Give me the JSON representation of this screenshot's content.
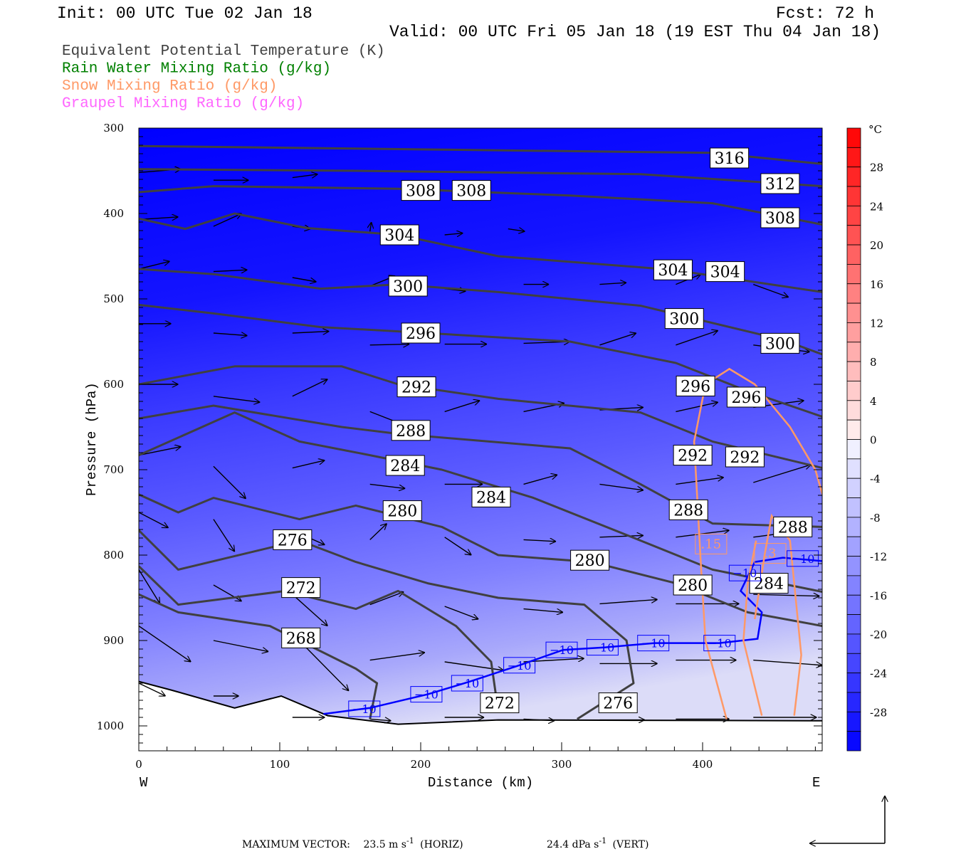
{
  "header": {
    "init": "Init: 00 UTC Tue 02 Jan 18",
    "fcst": "Fcst:   72 h",
    "valid": "Valid: 00 UTC Fri 05 Jan 18 (19 EST Thu 04 Jan 18)"
  },
  "legend": [
    {
      "label": "Equivalent Potential Temperature (K)",
      "color": "#404040"
    },
    {
      "label": "Rain Water Mixing Ratio (g/kg)",
      "color": "#008000"
    },
    {
      "label": "Snow Mixing Ratio (g/kg)",
      "color": "#ff9966"
    },
    {
      "label": "Graupel Mixing Ratio (g/kg)",
      "color": "#ff66ff"
    }
  ],
  "footer": {
    "max_vector_label": "MAXIMUM VECTOR:",
    "horiz_value": "23.5 m s",
    "horiz_unit_exp": "-1",
    "horiz_tag": "(HORIZ)",
    "vert_value": "24.4 dPa s",
    "vert_unit_exp": "-1",
    "vert_tag": "(VERT)"
  },
  "chart_data": {
    "type": "cross-section",
    "xlabel": "Distance (km)",
    "ylabel": "Pressure (hPa)",
    "xlim": [
      0,
      485
    ],
    "ylim": [
      1029,
      300
    ],
    "x_ticks": [
      "0",
      "100",
      "200",
      "300",
      "400"
    ],
    "x_tick_values": [
      0,
      100,
      200,
      300,
      400
    ],
    "y_ticks": [
      "300",
      "400",
      "500",
      "600",
      "700",
      "800",
      "900",
      "1000"
    ],
    "y_tick_values": [
      300,
      400,
      500,
      600,
      700,
      800,
      900,
      1000
    ],
    "left_end_label": "W",
    "right_end_label": "E",
    "colorbar": {
      "unit": "°C",
      "min": -32,
      "max": 32,
      "step": 2,
      "tick_labels": [
        "28",
        "24",
        "20",
        "16",
        "12",
        "8",
        "4",
        "0",
        "-4",
        "-8",
        "-12",
        "-16",
        "-20",
        "-24",
        "-28"
      ],
      "tick_values": [
        28,
        24,
        20,
        16,
        12,
        8,
        4,
        0,
        -4,
        -8,
        -12,
        -16,
        -20,
        -24,
        -28
      ],
      "warm_color": "#ff0000",
      "cold_color": "#0000ff"
    },
    "theta_e_contours": [
      {
        "value": 316,
        "points": [
          [
            0,
            321
          ],
          [
            205,
            325
          ],
          [
            407,
            329
          ],
          [
            485,
            342
          ]
        ],
        "labels": [
          [
            419,
            335
          ]
        ]
      },
      {
        "value": 312,
        "points": [
          [
            0,
            348
          ],
          [
            154,
            350
          ],
          [
            356,
            354
          ],
          [
            485,
            368
          ]
        ],
        "labels": [
          [
            455,
            365
          ]
        ]
      },
      {
        "value": 308,
        "points": [
          [
            0,
            375
          ],
          [
            53,
            368
          ],
          [
            184,
            371
          ],
          [
            306,
            379
          ],
          [
            407,
            388
          ],
          [
            485,
            413
          ]
        ],
        "labels": [
          [
            200,
            373
          ],
          [
            236,
            373
          ],
          [
            455,
            405
          ]
        ]
      },
      {
        "value": 304,
        "points": [
          [
            0,
            406
          ],
          [
            33,
            418
          ],
          [
            68,
            400
          ],
          [
            119,
            417
          ],
          [
            184,
            425
          ],
          [
            255,
            450
          ],
          [
            379,
            466
          ],
          [
            485,
            492
          ]
        ],
        "labels": [
          [
            185,
            425
          ],
          [
            379,
            466
          ],
          [
            416,
            468
          ]
        ]
      },
      {
        "value": 300,
        "points": [
          [
            0,
            465
          ],
          [
            53,
            471
          ],
          [
            129,
            488
          ],
          [
            184,
            483
          ],
          [
            255,
            492
          ],
          [
            356,
            508
          ],
          [
            457,
            548
          ],
          [
            485,
            565
          ]
        ],
        "labels": [
          [
            191,
            485
          ],
          [
            387,
            523
          ],
          [
            455,
            552
          ]
        ]
      },
      {
        "value": 296,
        "points": [
          [
            0,
            507
          ],
          [
            53,
            517
          ],
          [
            129,
            533
          ],
          [
            184,
            538
          ],
          [
            306,
            550
          ],
          [
            381,
            575
          ],
          [
            432,
            608
          ],
          [
            485,
            638
          ]
        ],
        "labels": [
          [
            200,
            540
          ],
          [
            395,
            602
          ],
          [
            431,
            615
          ]
        ]
      },
      {
        "value": 292,
        "points": [
          [
            0,
            600
          ],
          [
            68,
            579
          ],
          [
            144,
            579
          ],
          [
            184,
            600
          ],
          [
            255,
            617
          ],
          [
            356,
            633
          ],
          [
            407,
            667
          ],
          [
            485,
            698
          ]
        ],
        "labels": [
          [
            197,
            603
          ],
          [
            393,
            683
          ],
          [
            430,
            685
          ]
        ]
      },
      {
        "value": 288,
        "points": [
          [
            0,
            640
          ],
          [
            53,
            625
          ],
          [
            144,
            650
          ],
          [
            184,
            658
          ],
          [
            306,
            675
          ],
          [
            356,
            717
          ],
          [
            407,
            763
          ],
          [
            485,
            767
          ]
        ],
        "labels": [
          [
            193,
            654
          ],
          [
            390,
            747
          ],
          [
            464,
            767
          ]
        ]
      },
      {
        "value": 284,
        "points": [
          [
            0,
            683
          ],
          [
            68,
            633
          ],
          [
            114,
            667
          ],
          [
            164,
            683
          ],
          [
            215,
            700
          ],
          [
            280,
            733
          ],
          [
            356,
            783
          ],
          [
            407,
            817
          ],
          [
            485,
            843
          ]
        ],
        "labels": [
          [
            189,
            695
          ],
          [
            250,
            732
          ],
          [
            447,
            833
          ]
        ]
      },
      {
        "value": 280,
        "points": [
          [
            0,
            729
          ],
          [
            28,
            750
          ],
          [
            53,
            733
          ],
          [
            114,
            758
          ],
          [
            154,
            742
          ],
          [
            215,
            767
          ],
          [
            255,
            800
          ],
          [
            321,
            808
          ],
          [
            381,
            833
          ],
          [
            432,
            867
          ],
          [
            485,
            883
          ]
        ],
        "labels": [
          [
            187,
            748
          ],
          [
            320,
            806
          ],
          [
            393,
            835
          ]
        ]
      },
      {
        "value": 276,
        "points": [
          [
            0,
            771
          ],
          [
            28,
            817
          ],
          [
            114,
            783
          ],
          [
            154,
            808
          ],
          [
            205,
            833
          ],
          [
            255,
            850
          ],
          [
            316,
            858
          ],
          [
            346,
            900
          ],
          [
            351,
            950
          ],
          [
            311,
            992
          ]
        ],
        "labels": [
          [
            109,
            782
          ],
          [
            340,
            973
          ]
        ]
      },
      {
        "value": 272,
        "points": [
          [
            0,
            813
          ],
          [
            28,
            858
          ],
          [
            104,
            842
          ],
          [
            154,
            863
          ],
          [
            184,
            842
          ],
          [
            225,
            883
          ],
          [
            250,
            925
          ],
          [
            255,
            983
          ]
        ],
        "labels": [
          [
            115,
            838
          ],
          [
            256,
            973
          ]
        ]
      },
      {
        "value": 268,
        "points": [
          [
            0,
            846
          ],
          [
            28,
            867
          ],
          [
            93,
            883
          ],
          [
            154,
            933
          ],
          [
            169,
            950
          ],
          [
            164,
            992
          ]
        ],
        "labels": [
          [
            115,
            897
          ]
        ]
      }
    ],
    "isotherm_minus10": {
      "value": "−10",
      "points": [
        [
          131,
          986
        ],
        [
          164,
          979
        ],
        [
          205,
          963
        ],
        [
          235,
          948
        ],
        [
          270,
          929
        ],
        [
          301,
          911
        ],
        [
          331,
          908
        ],
        [
          366,
          903
        ],
        [
          412,
          903
        ],
        [
          439,
          898
        ],
        [
          442,
          867
        ],
        [
          427,
          842
        ],
        [
          437,
          808
        ],
        [
          457,
          803
        ],
        [
          485,
          807
        ]
      ],
      "labels": [
        [
          160,
          980
        ],
        [
          204,
          963
        ],
        [
          233,
          950
        ],
        [
          270,
          929
        ],
        [
          300,
          911
        ],
        [
          329,
          908
        ],
        [
          365,
          903
        ],
        [
          412,
          903
        ],
        [
          430,
          821
        ],
        [
          471,
          804
        ]
      ]
    },
    "snow_contours": [
      {
        "value": ".15",
        "points": [
          [
            417,
            992
          ],
          [
            402,
            900
          ],
          [
            399,
            817
          ],
          [
            394,
            667
          ],
          [
            402,
            600
          ],
          [
            419,
            582
          ],
          [
            437,
            600
          ],
          [
            462,
            650
          ],
          [
            480,
            700
          ],
          [
            485,
            729
          ]
        ],
        "label": [
          406,
          787
        ]
      },
      {
        "value": ".3",
        "points": [
          [
            442,
            988
          ],
          [
            429,
            900
          ],
          [
            432,
            833
          ],
          [
            438,
            783
          ]
        ],
        "label": [
          448,
          798
        ]
      },
      {
        "value": "",
        "points": [
          [
            465,
            988
          ],
          [
            470,
            917
          ],
          [
            462,
            783
          ],
          [
            449,
            754
          ],
          [
            444,
            800
          ],
          [
            437,
            875
          ]
        ],
        "label": null
      }
    ],
    "terrain": [
      [
        0,
        948
      ],
      [
        23,
        958
      ],
      [
        68,
        979
      ],
      [
        101,
        965
      ],
      [
        134,
        988
      ],
      [
        184,
        998
      ],
      [
        255,
        993
      ],
      [
        485,
        994
      ]
    ],
    "wind_vectors_km_hpa_dkm_dhpa": [
      [
        0,
        352,
        30,
        -4
      ],
      [
        53,
        361,
        25,
        0
      ],
      [
        109,
        358,
        18,
        -4
      ],
      [
        0,
        407,
        28,
        -3
      ],
      [
        53,
        415,
        20,
        -15
      ],
      [
        109,
        415,
        13,
        3
      ],
      [
        164,
        421,
        1,
        -11
      ],
      [
        217,
        425,
        13,
        -2
      ],
      [
        262,
        418,
        12,
        3
      ],
      [
        0,
        465,
        22,
        -9
      ],
      [
        53,
        468,
        24,
        -2
      ],
      [
        109,
        475,
        17,
        5
      ],
      [
        164,
        485,
        18,
        -12
      ],
      [
        217,
        488,
        15,
        3
      ],
      [
        273,
        483,
        18,
        0
      ],
      [
        327,
        483,
        19,
        -2
      ],
      [
        381,
        483,
        18,
        -12
      ],
      [
        436,
        483,
        25,
        15
      ],
      [
        0,
        529,
        23,
        0
      ],
      [
        53,
        540,
        24,
        3
      ],
      [
        109,
        540,
        26,
        -2
      ],
      [
        164,
        554,
        28,
        -1
      ],
      [
        217,
        553,
        30,
        0
      ],
      [
        273,
        552,
        33,
        -2
      ],
      [
        327,
        554,
        26,
        -14
      ],
      [
        381,
        554,
        30,
        -17
      ],
      [
        436,
        554,
        40,
        8
      ],
      [
        0,
        600,
        28,
        0
      ],
      [
        53,
        614,
        33,
        7
      ],
      [
        109,
        614,
        25,
        -20
      ],
      [
        164,
        632,
        28,
        18
      ],
      [
        217,
        632,
        25,
        -13
      ],
      [
        273,
        632,
        29,
        -10
      ],
      [
        327,
        630,
        31,
        -3
      ],
      [
        381,
        632,
        30,
        -11
      ],
      [
        436,
        627,
        36,
        -8
      ],
      [
        0,
        683,
        30,
        -10
      ],
      [
        53,
        696,
        23,
        38
      ],
      [
        109,
        698,
        23,
        -9
      ],
      [
        164,
        717,
        25,
        5
      ],
      [
        217,
        717,
        27,
        0
      ],
      [
        273,
        717,
        24,
        -11
      ],
      [
        327,
        717,
        31,
        7
      ],
      [
        381,
        717,
        34,
        -8
      ],
      [
        436,
        715,
        41,
        -21
      ],
      [
        0,
        750,
        21,
        18
      ],
      [
        53,
        758,
        15,
        38
      ],
      [
        109,
        771,
        23,
        17
      ],
      [
        164,
        782,
        12,
        -19
      ],
      [
        217,
        779,
        19,
        21
      ],
      [
        273,
        782,
        23,
        2
      ],
      [
        327,
        779,
        31,
        -2
      ],
      [
        381,
        779,
        38,
        -8
      ],
      [
        436,
        779,
        41,
        -9
      ],
      [
        0,
        817,
        15,
        40
      ],
      [
        53,
        835,
        20,
        19
      ],
      [
        109,
        846,
        25,
        37
      ],
      [
        164,
        858,
        24,
        -15
      ],
      [
        217,
        860,
        24,
        15
      ],
      [
        273,
        863,
        28,
        4
      ],
      [
        327,
        857,
        41,
        -5
      ],
      [
        381,
        857,
        45,
        0
      ],
      [
        436,
        846,
        47,
        2
      ],
      [
        0,
        883,
        37,
        42
      ],
      [
        53,
        900,
        39,
        13
      ],
      [
        109,
        892,
        40,
        67
      ],
      [
        164,
        923,
        39,
        -9
      ],
      [
        217,
        925,
        42,
        10
      ],
      [
        273,
        925,
        43,
        -4
      ],
      [
        327,
        927,
        41,
        0
      ],
      [
        381,
        923,
        43,
        0
      ],
      [
        436,
        923,
        49,
        6
      ],
      [
        0,
        950,
        19,
        15
      ],
      [
        53,
        965,
        18,
        0
      ],
      [
        109,
        990,
        23,
        0
      ],
      [
        164,
        992,
        15,
        2
      ],
      [
        217,
        990,
        28,
        0
      ],
      [
        273,
        992,
        22,
        2
      ],
      [
        327,
        993,
        32,
        0
      ],
      [
        381,
        992,
        38,
        0
      ],
      [
        436,
        990,
        45,
        0
      ]
    ]
  }
}
